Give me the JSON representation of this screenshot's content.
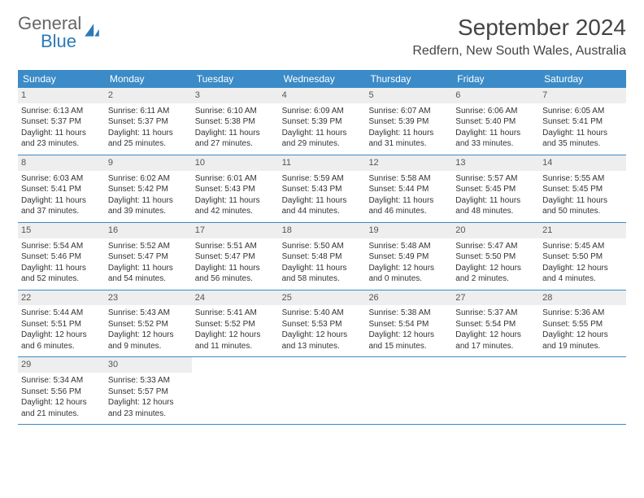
{
  "logo": {
    "text1": "General",
    "text2": "Blue"
  },
  "title": "September 2024",
  "location": "Redfern, New South Wales, Australia",
  "colors": {
    "header_bg": "#3a8bc8",
    "header_text": "#ffffff",
    "daynum_bg": "#eeeeee",
    "border": "#3a8bc8",
    "text": "#333333",
    "logo_blue": "#2a7ab8"
  },
  "weekdays": [
    "Sunday",
    "Monday",
    "Tuesday",
    "Wednesday",
    "Thursday",
    "Friday",
    "Saturday"
  ],
  "weeks": [
    [
      {
        "n": "1",
        "sr": "6:13 AM",
        "ss": "5:37 PM",
        "dl": "11 hours and 23 minutes."
      },
      {
        "n": "2",
        "sr": "6:11 AM",
        "ss": "5:37 PM",
        "dl": "11 hours and 25 minutes."
      },
      {
        "n": "3",
        "sr": "6:10 AM",
        "ss": "5:38 PM",
        "dl": "11 hours and 27 minutes."
      },
      {
        "n": "4",
        "sr": "6:09 AM",
        "ss": "5:39 PM",
        "dl": "11 hours and 29 minutes."
      },
      {
        "n": "5",
        "sr": "6:07 AM",
        "ss": "5:39 PM",
        "dl": "11 hours and 31 minutes."
      },
      {
        "n": "6",
        "sr": "6:06 AM",
        "ss": "5:40 PM",
        "dl": "11 hours and 33 minutes."
      },
      {
        "n": "7",
        "sr": "6:05 AM",
        "ss": "5:41 PM",
        "dl": "11 hours and 35 minutes."
      }
    ],
    [
      {
        "n": "8",
        "sr": "6:03 AM",
        "ss": "5:41 PM",
        "dl": "11 hours and 37 minutes."
      },
      {
        "n": "9",
        "sr": "6:02 AM",
        "ss": "5:42 PM",
        "dl": "11 hours and 39 minutes."
      },
      {
        "n": "10",
        "sr": "6:01 AM",
        "ss": "5:43 PM",
        "dl": "11 hours and 42 minutes."
      },
      {
        "n": "11",
        "sr": "5:59 AM",
        "ss": "5:43 PM",
        "dl": "11 hours and 44 minutes."
      },
      {
        "n": "12",
        "sr": "5:58 AM",
        "ss": "5:44 PM",
        "dl": "11 hours and 46 minutes."
      },
      {
        "n": "13",
        "sr": "5:57 AM",
        "ss": "5:45 PM",
        "dl": "11 hours and 48 minutes."
      },
      {
        "n": "14",
        "sr": "5:55 AM",
        "ss": "5:45 PM",
        "dl": "11 hours and 50 minutes."
      }
    ],
    [
      {
        "n": "15",
        "sr": "5:54 AM",
        "ss": "5:46 PM",
        "dl": "11 hours and 52 minutes."
      },
      {
        "n": "16",
        "sr": "5:52 AM",
        "ss": "5:47 PM",
        "dl": "11 hours and 54 minutes."
      },
      {
        "n": "17",
        "sr": "5:51 AM",
        "ss": "5:47 PM",
        "dl": "11 hours and 56 minutes."
      },
      {
        "n": "18",
        "sr": "5:50 AM",
        "ss": "5:48 PM",
        "dl": "11 hours and 58 minutes."
      },
      {
        "n": "19",
        "sr": "5:48 AM",
        "ss": "5:49 PM",
        "dl": "12 hours and 0 minutes."
      },
      {
        "n": "20",
        "sr": "5:47 AM",
        "ss": "5:50 PM",
        "dl": "12 hours and 2 minutes."
      },
      {
        "n": "21",
        "sr": "5:45 AM",
        "ss": "5:50 PM",
        "dl": "12 hours and 4 minutes."
      }
    ],
    [
      {
        "n": "22",
        "sr": "5:44 AM",
        "ss": "5:51 PM",
        "dl": "12 hours and 6 minutes."
      },
      {
        "n": "23",
        "sr": "5:43 AM",
        "ss": "5:52 PM",
        "dl": "12 hours and 9 minutes."
      },
      {
        "n": "24",
        "sr": "5:41 AM",
        "ss": "5:52 PM",
        "dl": "12 hours and 11 minutes."
      },
      {
        "n": "25",
        "sr": "5:40 AM",
        "ss": "5:53 PM",
        "dl": "12 hours and 13 minutes."
      },
      {
        "n": "26",
        "sr": "5:38 AM",
        "ss": "5:54 PM",
        "dl": "12 hours and 15 minutes."
      },
      {
        "n": "27",
        "sr": "5:37 AM",
        "ss": "5:54 PM",
        "dl": "12 hours and 17 minutes."
      },
      {
        "n": "28",
        "sr": "5:36 AM",
        "ss": "5:55 PM",
        "dl": "12 hours and 19 minutes."
      }
    ],
    [
      {
        "n": "29",
        "sr": "5:34 AM",
        "ss": "5:56 PM",
        "dl": "12 hours and 21 minutes."
      },
      {
        "n": "30",
        "sr": "5:33 AM",
        "ss": "5:57 PM",
        "dl": "12 hours and 23 minutes."
      },
      null,
      null,
      null,
      null,
      null
    ]
  ],
  "labels": {
    "sunrise": "Sunrise: ",
    "sunset": "Sunset: ",
    "daylight": "Daylight: "
  }
}
